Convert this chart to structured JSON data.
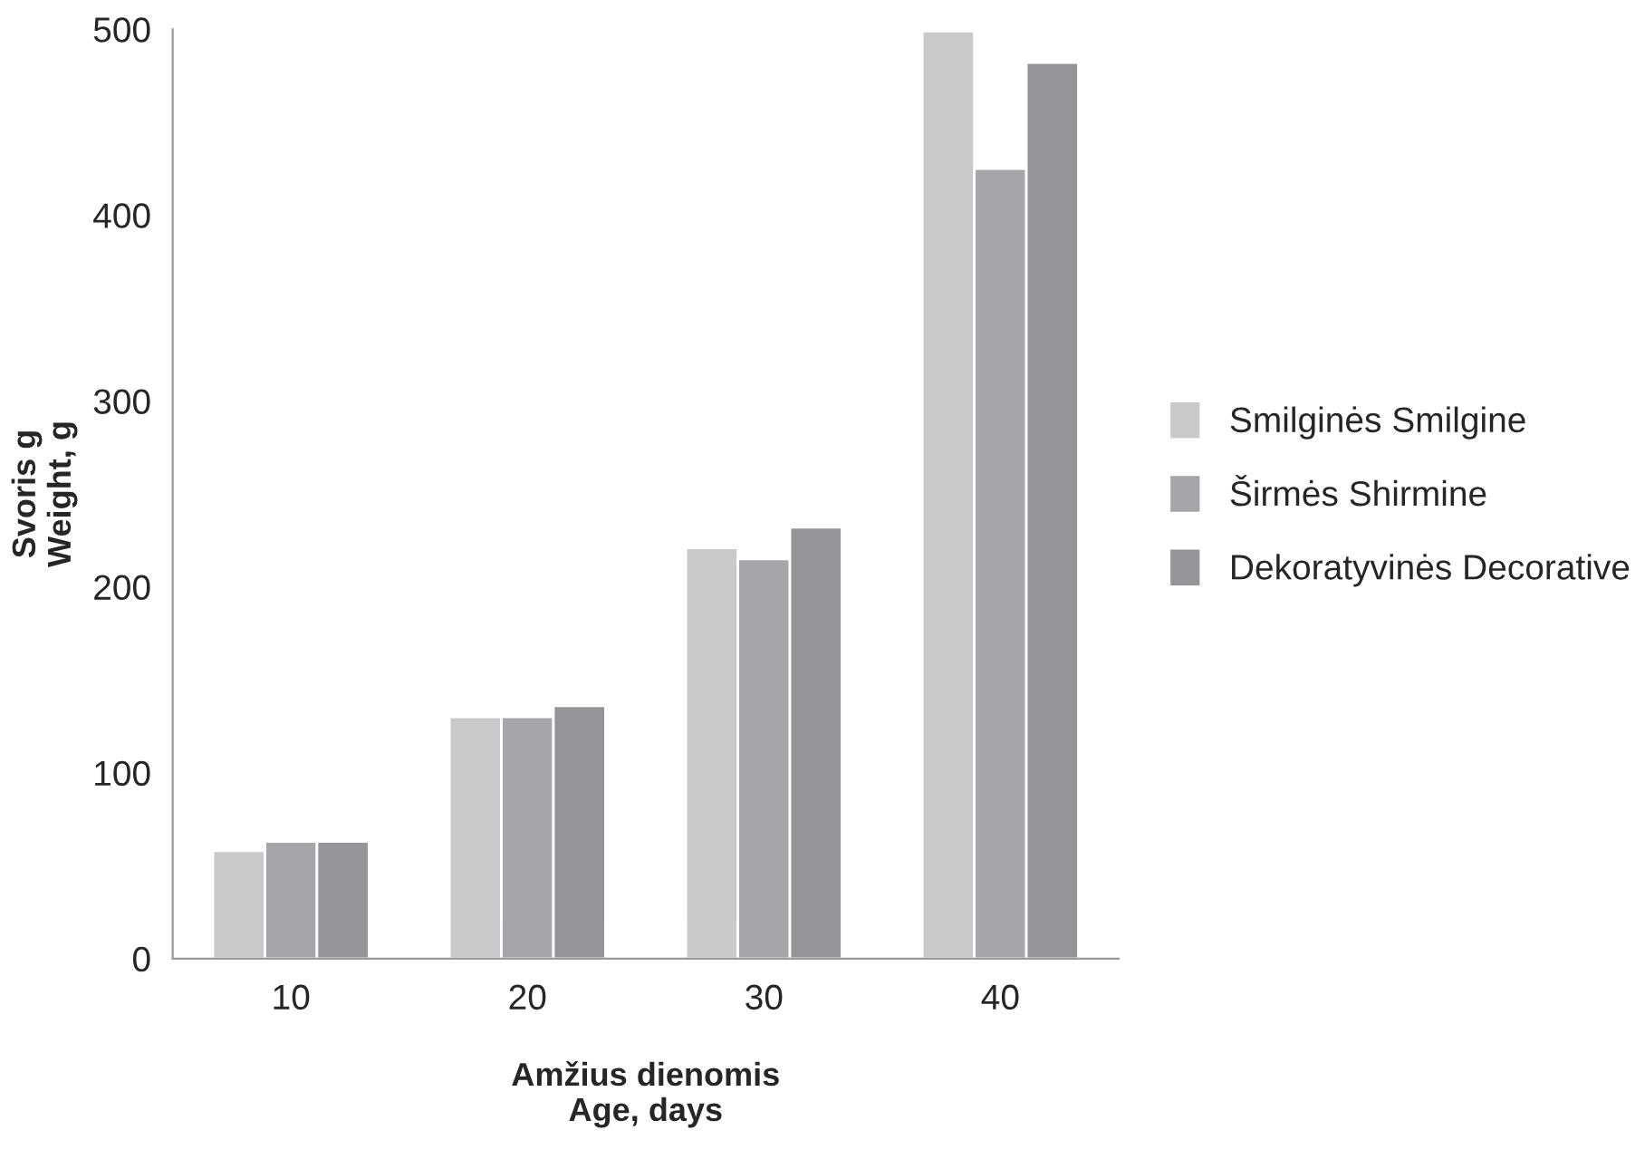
{
  "chart_data": {
    "type": "bar",
    "xlabel": "Amžius dienomis\nAge, days",
    "ylabel": "Svoris g\nWeight, g",
    "categories": [
      "10",
      "20",
      "30",
      "40"
    ],
    "series": [
      {
        "name": "Smilginės Smilgine",
        "color": "#c8c9cb",
        "values": [
          58,
          130,
          221,
          499
        ]
      },
      {
        "name": "Širmės Shirmine",
        "color": "#a5a6aa",
        "values": [
          63,
          130,
          215,
          425
        ]
      },
      {
        "name": "Dekoratyvinės Decorative",
        "color": "#949599",
        "values": [
          63,
          136,
          232,
          482
        ]
      }
    ],
    "ylim": [
      0,
      500
    ],
    "yticks": [
      0,
      100,
      200,
      300,
      400,
      500
    ],
    "grid": false,
    "legend": "right"
  }
}
